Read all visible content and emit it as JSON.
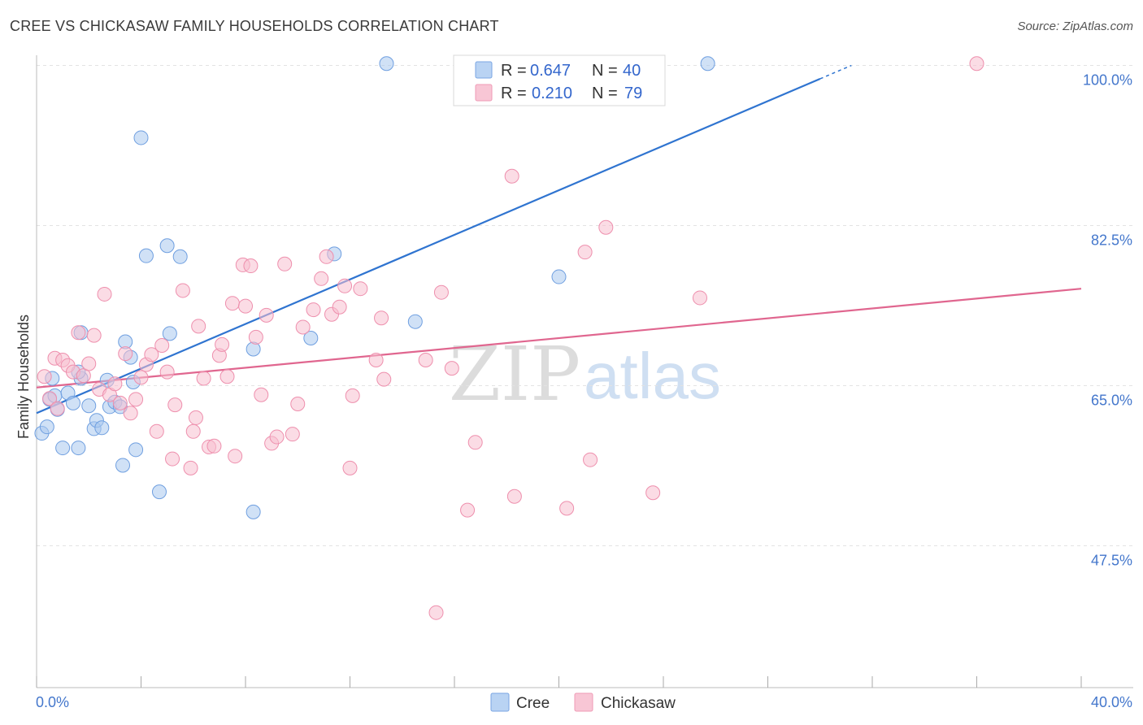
{
  "header": {
    "title": "CREE VS CHICKASAW FAMILY HOUSEHOLDS CORRELATION CHART",
    "source": "Source: ZipAtlas.com"
  },
  "legend": {
    "cree": {
      "r_label": "R =",
      "r_value": "0.647",
      "n_label": "N =",
      "n_value": "40"
    },
    "chickasaw": {
      "r_label": "R =",
      "r_value": "0.210",
      "n_label": "N =",
      "n_value": "79"
    }
  },
  "bottom_legend": {
    "cree": "Cree",
    "chickasaw": "Chickasaw"
  },
  "watermark": {
    "zip": "ZIP",
    "atlas": "atlas"
  },
  "colors": {
    "cree_fill": "#a9c8ef",
    "cree_stroke": "#6f9fe0",
    "cree_line": "#2f74d0",
    "chickasaw_fill": "#f7bfd0",
    "chickasaw_stroke": "#ee8fad",
    "chickasaw_line": "#e0668f",
    "grid": "#e3e3e3",
    "axis_text": "#4477cc"
  },
  "chart_data": {
    "type": "scatter",
    "title": "CREE VS CHICKASAW FAMILY HOUSEHOLDS CORRELATION CHART",
    "xlabel": "",
    "ylabel": "Family Households",
    "xlim": [
      0,
      40
    ],
    "ylim": [
      32,
      102
    ],
    "x_tick_labels": [
      {
        "value": 0,
        "label": "0.0%"
      },
      {
        "value": 40,
        "label": "40.0%"
      }
    ],
    "y_tick_labels": [
      {
        "value": 100,
        "label": "100.0%"
      },
      {
        "value": 82.5,
        "label": "82.5%"
      },
      {
        "value": 65,
        "label": "65.0%"
      },
      {
        "value": 47.5,
        "label": "47.5%"
      }
    ],
    "y_grid": [
      100,
      82.5,
      65,
      47.5
    ],
    "x_minor_ticks": [
      0,
      4,
      8,
      12,
      16,
      20,
      24,
      28,
      32,
      36,
      40
    ],
    "series": [
      {
        "name": "Cree",
        "r": 0.647,
        "n": 40,
        "trend": {
          "x0": 0,
          "y0": 62.0,
          "x1": 31.2,
          "y1": 100.0
        },
        "points": [
          [
            0.2,
            59.8
          ],
          [
            0.4,
            60.5
          ],
          [
            0.5,
            63.5
          ],
          [
            0.6,
            65.8
          ],
          [
            0.7,
            63.9
          ],
          [
            0.8,
            62.4
          ],
          [
            1.0,
            58.2
          ],
          [
            1.2,
            64.2
          ],
          [
            1.4,
            63.1
          ],
          [
            1.6,
            58.2
          ],
          [
            1.7,
            65.8
          ],
          [
            2.0,
            62.8
          ],
          [
            2.2,
            60.3
          ],
          [
            2.3,
            61.2
          ],
          [
            2.5,
            60.4
          ],
          [
            2.7,
            65.6
          ],
          [
            2.8,
            62.7
          ],
          [
            3.0,
            63.2
          ],
          [
            3.2,
            62.7
          ],
          [
            3.4,
            69.8
          ],
          [
            3.6,
            68.1
          ],
          [
            3.7,
            65.4
          ],
          [
            3.8,
            58.0
          ],
          [
            4.0,
            92.1
          ],
          [
            4.2,
            79.2
          ],
          [
            4.7,
            53.4
          ],
          [
            5.0,
            80.3
          ],
          [
            5.1,
            70.7
          ],
          [
            5.5,
            79.1
          ],
          [
            8.3,
            69.0
          ],
          [
            8.3,
            51.2
          ],
          [
            10.5,
            70.2
          ],
          [
            11.4,
            79.4
          ],
          [
            13.4,
            100.2
          ],
          [
            14.5,
            72.0
          ],
          [
            20.0,
            76.9
          ],
          [
            25.7,
            100.2
          ],
          [
            1.7,
            70.8
          ],
          [
            3.3,
            56.3
          ],
          [
            1.6,
            66.5
          ]
        ]
      },
      {
        "name": "Chickasaw",
        "r": 0.21,
        "n": 79,
        "trend": {
          "x0": 0,
          "y0": 64.8,
          "x1": 40,
          "y1": 75.6
        },
        "points": [
          [
            0.3,
            66.0
          ],
          [
            0.5,
            63.6
          ],
          [
            0.7,
            68.0
          ],
          [
            0.8,
            62.5
          ],
          [
            1.0,
            67.8
          ],
          [
            1.2,
            67.2
          ],
          [
            1.4,
            66.5
          ],
          [
            1.6,
            70.8
          ],
          [
            1.8,
            66.1
          ],
          [
            2.0,
            67.4
          ],
          [
            2.2,
            70.5
          ],
          [
            2.4,
            64.6
          ],
          [
            2.6,
            75.0
          ],
          [
            2.8,
            64.0
          ],
          [
            3.0,
            65.2
          ],
          [
            3.2,
            63.1
          ],
          [
            3.4,
            68.5
          ],
          [
            3.6,
            62.0
          ],
          [
            3.8,
            63.5
          ],
          [
            4.0,
            65.9
          ],
          [
            4.2,
            67.3
          ],
          [
            4.4,
            68.4
          ],
          [
            4.6,
            60.0
          ],
          [
            4.8,
            69.4
          ],
          [
            5.0,
            66.5
          ],
          [
            5.2,
            57.0
          ],
          [
            5.3,
            62.9
          ],
          [
            5.6,
            75.4
          ],
          [
            5.9,
            56.0
          ],
          [
            6.1,
            61.5
          ],
          [
            6.2,
            71.5
          ],
          [
            6.4,
            65.8
          ],
          [
            6.6,
            58.3
          ],
          [
            6.8,
            58.4
          ],
          [
            7.0,
            68.3
          ],
          [
            7.1,
            69.5
          ],
          [
            7.3,
            66.0
          ],
          [
            7.5,
            74.0
          ],
          [
            7.6,
            57.3
          ],
          [
            7.9,
            78.2
          ],
          [
            8.0,
            73.7
          ],
          [
            8.2,
            78.1
          ],
          [
            8.4,
            70.3
          ],
          [
            8.6,
            64.0
          ],
          [
            8.8,
            72.7
          ],
          [
            9.0,
            58.7
          ],
          [
            9.2,
            59.4
          ],
          [
            9.5,
            78.3
          ],
          [
            9.8,
            59.7
          ],
          [
            10.2,
            71.4
          ],
          [
            10.6,
            73.3
          ],
          [
            10.9,
            76.7
          ],
          [
            11.1,
            79.1
          ],
          [
            11.3,
            72.8
          ],
          [
            11.6,
            73.6
          ],
          [
            11.8,
            75.9
          ],
          [
            12.0,
            56.0
          ],
          [
            12.1,
            63.9
          ],
          [
            12.4,
            75.6
          ],
          [
            13.2,
            72.4
          ],
          [
            13.0,
            67.8
          ],
          [
            13.3,
            65.7
          ],
          [
            14.9,
            67.8
          ],
          [
            15.3,
            40.2
          ],
          [
            15.5,
            75.2
          ],
          [
            15.9,
            66.9
          ],
          [
            16.5,
            51.4
          ],
          [
            16.8,
            58.8
          ],
          [
            18.2,
            87.9
          ],
          [
            18.3,
            52.9
          ],
          [
            20.3,
            51.6
          ],
          [
            21.0,
            79.6
          ],
          [
            21.2,
            56.9
          ],
          [
            21.8,
            82.3
          ],
          [
            23.6,
            53.3
          ],
          [
            25.4,
            74.6
          ],
          [
            36.0,
            100.2
          ],
          [
            10.0,
            63.0
          ],
          [
            6.0,
            60.0
          ]
        ]
      }
    ]
  }
}
